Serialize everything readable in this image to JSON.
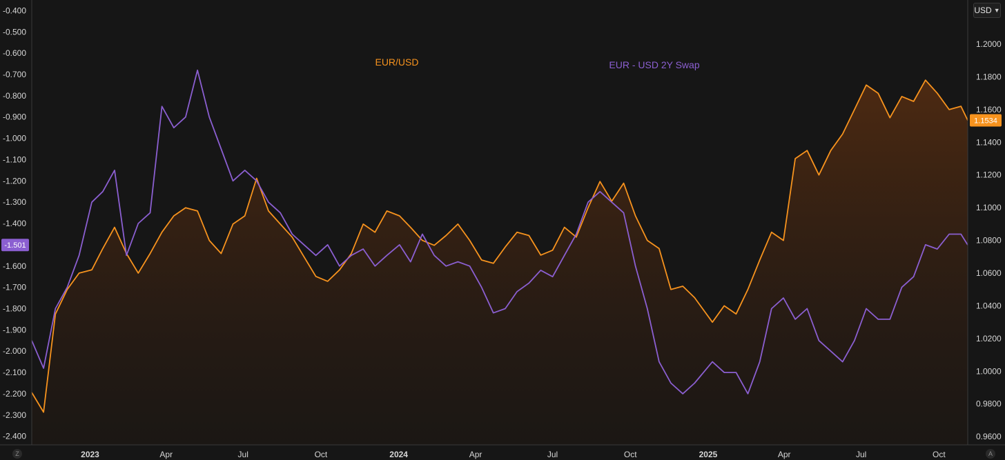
{
  "currency_selector": {
    "label": "USD"
  },
  "corner_buttons": {
    "left": "Z",
    "right": "A"
  },
  "colors": {
    "eurusd": "#f7931e",
    "swap": "#8b5fd1",
    "background": "#161616"
  },
  "chart_data": {
    "type": "line",
    "x_axis": {
      "ticks": [
        {
          "label": "2023",
          "date": "2023-01-01",
          "bold": true
        },
        {
          "label": "Apr",
          "date": "2023-04-01"
        },
        {
          "label": "Jul",
          "date": "2023-07-01"
        },
        {
          "label": "Oct",
          "date": "2023-10-01"
        },
        {
          "label": "2024",
          "date": "2024-01-01",
          "bold": true
        },
        {
          "label": "Apr",
          "date": "2024-04-01"
        },
        {
          "label": "Jul",
          "date": "2024-07-01"
        },
        {
          "label": "Oct",
          "date": "2024-10-01"
        },
        {
          "label": "2025",
          "date": "2025-01-01",
          "bold": true
        },
        {
          "label": "Apr",
          "date": "2025-04-01"
        },
        {
          "label": "Jul",
          "date": "2025-07-01"
        },
        {
          "label": "Oct",
          "date": "2025-10-01"
        }
      ],
      "range": [
        "2022-10-24",
        "2025-11-04"
      ]
    },
    "left_axis": {
      "ticks": [
        "-0.400",
        "-0.500",
        "-0.600",
        "-0.700",
        "-0.800",
        "-0.900",
        "-1.000",
        "-1.100",
        "-1.200",
        "-1.300",
        "-1.400",
        "-1.500",
        "-1.600",
        "-1.700",
        "-1.800",
        "-1.900",
        "-2.000",
        "-2.100",
        "-2.200",
        "-2.300",
        "-2.400"
      ],
      "range": [
        -2.44,
        -0.35
      ],
      "last_value_label": "-1.501"
    },
    "right_axis": {
      "ticks": [
        "1.2000",
        "1.1800",
        "1.1600",
        "1.1400",
        "1.1200",
        "1.1000",
        "1.0800",
        "1.0600",
        "1.0400",
        "1.0200",
        "1.0000",
        "0.9800",
        "0.9600"
      ],
      "range": [
        0.955,
        1.227
      ],
      "last_value_label": "1.1534"
    },
    "series": [
      {
        "name": "EUR/USD",
        "axis": "right",
        "style": "area",
        "points": [
          [
            "2022-10-24",
            0.987
          ],
          [
            "2022-11-07",
            0.975
          ],
          [
            "2022-11-21",
            1.035
          ],
          [
            "2022-12-05",
            1.05
          ],
          [
            "2022-12-19",
            1.06
          ],
          [
            "2023-01-03",
            1.062
          ],
          [
            "2023-01-16",
            1.075
          ],
          [
            "2023-01-30",
            1.088
          ],
          [
            "2023-02-13",
            1.072
          ],
          [
            "2023-02-27",
            1.06
          ],
          [
            "2023-03-13",
            1.072
          ],
          [
            "2023-03-27",
            1.085
          ],
          [
            "2023-04-10",
            1.095
          ],
          [
            "2023-04-24",
            1.1
          ],
          [
            "2023-05-08",
            1.098
          ],
          [
            "2023-05-22",
            1.08
          ],
          [
            "2023-06-05",
            1.072
          ],
          [
            "2023-06-19",
            1.09
          ],
          [
            "2023-07-03",
            1.095
          ],
          [
            "2023-07-17",
            1.118
          ],
          [
            "2023-07-31",
            1.098
          ],
          [
            "2023-08-14",
            1.09
          ],
          [
            "2023-08-28",
            1.082
          ],
          [
            "2023-09-11",
            1.07
          ],
          [
            "2023-09-25",
            1.058
          ],
          [
            "2023-10-09",
            1.055
          ],
          [
            "2023-10-23",
            1.062
          ],
          [
            "2023-11-06",
            1.072
          ],
          [
            "2023-11-20",
            1.09
          ],
          [
            "2023-12-04",
            1.085
          ],
          [
            "2023-12-18",
            1.098
          ],
          [
            "2024-01-02",
            1.095
          ],
          [
            "2024-01-15",
            1.088
          ],
          [
            "2024-01-29",
            1.08
          ],
          [
            "2024-02-12",
            1.077
          ],
          [
            "2024-02-26",
            1.083
          ],
          [
            "2024-03-11",
            1.09
          ],
          [
            "2024-03-25",
            1.08
          ],
          [
            "2024-04-08",
            1.068
          ],
          [
            "2024-04-22",
            1.066
          ],
          [
            "2024-05-06",
            1.076
          ],
          [
            "2024-05-20",
            1.085
          ],
          [
            "2024-06-03",
            1.083
          ],
          [
            "2024-06-17",
            1.071
          ],
          [
            "2024-07-01",
            1.074
          ],
          [
            "2024-07-15",
            1.088
          ],
          [
            "2024-07-29",
            1.082
          ],
          [
            "2024-08-12",
            1.1
          ],
          [
            "2024-08-26",
            1.116
          ],
          [
            "2024-09-09",
            1.104
          ],
          [
            "2024-09-23",
            1.115
          ],
          [
            "2024-10-07",
            1.095
          ],
          [
            "2024-10-21",
            1.08
          ],
          [
            "2024-11-04",
            1.075
          ],
          [
            "2024-11-18",
            1.05
          ],
          [
            "2024-12-02",
            1.052
          ],
          [
            "2024-12-16",
            1.045
          ],
          [
            "2025-01-06",
            1.03
          ],
          [
            "2025-01-20",
            1.04
          ],
          [
            "2025-02-03",
            1.035
          ],
          [
            "2025-02-17",
            1.05
          ],
          [
            "2025-03-03",
            1.068
          ],
          [
            "2025-03-17",
            1.085
          ],
          [
            "2025-03-31",
            1.08
          ],
          [
            "2025-04-14",
            1.13
          ],
          [
            "2025-04-28",
            1.135
          ],
          [
            "2025-05-12",
            1.12
          ],
          [
            "2025-05-26",
            1.135
          ],
          [
            "2025-06-09",
            1.145
          ],
          [
            "2025-06-23",
            1.16
          ],
          [
            "2025-07-07",
            1.175
          ],
          [
            "2025-07-21",
            1.17
          ],
          [
            "2025-08-04",
            1.155
          ],
          [
            "2025-08-18",
            1.168
          ],
          [
            "2025-09-01",
            1.165
          ],
          [
            "2025-09-15",
            1.178
          ],
          [
            "2025-09-29",
            1.17
          ],
          [
            "2025-10-13",
            1.16
          ],
          [
            "2025-10-27",
            1.162
          ],
          [
            "2025-11-04",
            1.1534
          ]
        ]
      },
      {
        "name": "EUR - USD 2Y Swap",
        "axis": "left",
        "style": "line",
        "points": [
          [
            "2022-10-24",
            -1.95
          ],
          [
            "2022-11-07",
            -2.08
          ],
          [
            "2022-11-21",
            -1.8
          ],
          [
            "2022-12-05",
            -1.7
          ],
          [
            "2022-12-19",
            -1.55
          ],
          [
            "2023-01-03",
            -1.3
          ],
          [
            "2023-01-16",
            -1.25
          ],
          [
            "2023-01-30",
            -1.15
          ],
          [
            "2023-02-13",
            -1.55
          ],
          [
            "2023-02-27",
            -1.4
          ],
          [
            "2023-03-13",
            -1.35
          ],
          [
            "2023-03-27",
            -0.85
          ],
          [
            "2023-04-10",
            -0.95
          ],
          [
            "2023-04-24",
            -0.9
          ],
          [
            "2023-05-08",
            -0.68
          ],
          [
            "2023-05-22",
            -0.9
          ],
          [
            "2023-06-05",
            -1.05
          ],
          [
            "2023-06-19",
            -1.2
          ],
          [
            "2023-07-03",
            -1.15
          ],
          [
            "2023-07-17",
            -1.2
          ],
          [
            "2023-07-31",
            -1.3
          ],
          [
            "2023-08-14",
            -1.35
          ],
          [
            "2023-08-28",
            -1.45
          ],
          [
            "2023-09-11",
            -1.5
          ],
          [
            "2023-09-25",
            -1.55
          ],
          [
            "2023-10-09",
            -1.5
          ],
          [
            "2023-10-23",
            -1.6
          ],
          [
            "2023-11-06",
            -1.55
          ],
          [
            "2023-11-20",
            -1.52
          ],
          [
            "2023-12-04",
            -1.6
          ],
          [
            "2023-12-18",
            -1.55
          ],
          [
            "2024-01-02",
            -1.5
          ],
          [
            "2024-01-15",
            -1.58
          ],
          [
            "2024-01-29",
            -1.45
          ],
          [
            "2024-02-12",
            -1.55
          ],
          [
            "2024-02-26",
            -1.6
          ],
          [
            "2024-03-11",
            -1.58
          ],
          [
            "2024-03-25",
            -1.6
          ],
          [
            "2024-04-08",
            -1.7
          ],
          [
            "2024-04-22",
            -1.82
          ],
          [
            "2024-05-06",
            -1.8
          ],
          [
            "2024-05-20",
            -1.72
          ],
          [
            "2024-06-03",
            -1.68
          ],
          [
            "2024-06-17",
            -1.62
          ],
          [
            "2024-07-01",
            -1.65
          ],
          [
            "2024-07-15",
            -1.55
          ],
          [
            "2024-07-29",
            -1.45
          ],
          [
            "2024-08-12",
            -1.3
          ],
          [
            "2024-08-26",
            -1.25
          ],
          [
            "2024-09-09",
            -1.3
          ],
          [
            "2024-09-23",
            -1.35
          ],
          [
            "2024-10-07",
            -1.6
          ],
          [
            "2024-10-21",
            -1.8
          ],
          [
            "2024-11-04",
            -2.05
          ],
          [
            "2024-11-18",
            -2.15
          ],
          [
            "2024-12-02",
            -2.2
          ],
          [
            "2024-12-16",
            -2.15
          ],
          [
            "2025-01-06",
            -2.05
          ],
          [
            "2025-01-20",
            -2.1
          ],
          [
            "2025-02-03",
            -2.1
          ],
          [
            "2025-02-17",
            -2.2
          ],
          [
            "2025-03-03",
            -2.05
          ],
          [
            "2025-03-17",
            -1.8
          ],
          [
            "2025-03-31",
            -1.75
          ],
          [
            "2025-04-14",
            -1.85
          ],
          [
            "2025-04-28",
            -1.8
          ],
          [
            "2025-05-12",
            -1.95
          ],
          [
            "2025-05-26",
            -2.0
          ],
          [
            "2025-06-09",
            -2.05
          ],
          [
            "2025-06-23",
            -1.95
          ],
          [
            "2025-07-07",
            -1.8
          ],
          [
            "2025-07-21",
            -1.85
          ],
          [
            "2025-08-04",
            -1.85
          ],
          [
            "2025-08-18",
            -1.7
          ],
          [
            "2025-09-01",
            -1.65
          ],
          [
            "2025-09-15",
            -1.5
          ],
          [
            "2025-09-29",
            -1.52
          ],
          [
            "2025-10-13",
            -1.45
          ],
          [
            "2025-10-27",
            -1.45
          ],
          [
            "2025-11-04",
            -1.501
          ]
        ]
      }
    ],
    "legend": [
      {
        "text": "EUR/USD",
        "series": 0
      },
      {
        "text": "EUR - USD 2Y Swap",
        "series": 1
      }
    ]
  }
}
